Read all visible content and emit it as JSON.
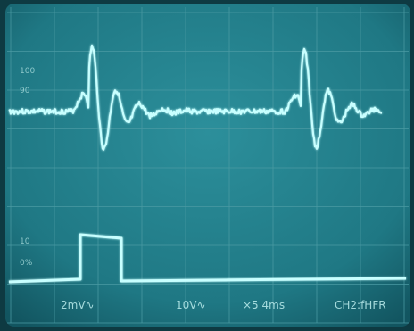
{
  "scale_labels": {
    "top": "100",
    "upper": "90",
    "lower": "10",
    "zero": "0%"
  },
  "readout": {
    "ch1": "2mV∿",
    "ch2": "10V∿",
    "time": "×5 4ms",
    "mode": "CH2:fHFR"
  }
}
